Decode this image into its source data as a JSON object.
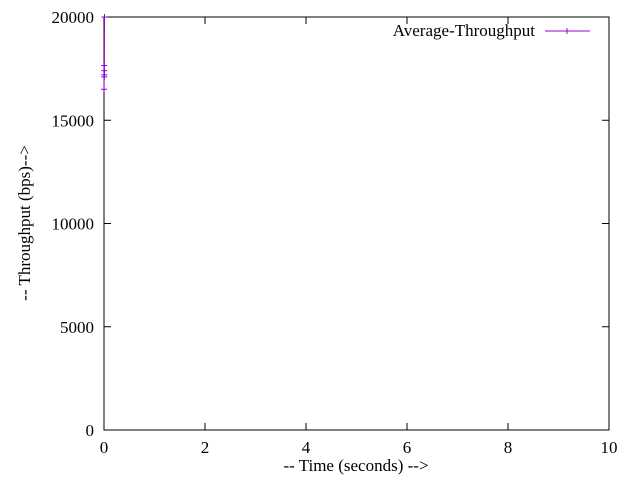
{
  "chart_data": {
    "type": "line",
    "title": "",
    "xlabel": "-- Time (seconds) -->",
    "ylabel": "-- Throughput (bps)-->",
    "xlim": [
      0,
      10
    ],
    "ylim": [
      0,
      20000
    ],
    "x_ticks": [
      0,
      2,
      4,
      6,
      8,
      10
    ],
    "y_ticks": [
      0,
      5000,
      10000,
      15000,
      20000
    ],
    "x_tick_labels": [
      "0",
      "2",
      "4",
      "6",
      "8",
      "10"
    ],
    "y_tick_labels": [
      "0",
      "5000",
      "10000",
      "15000",
      "20000"
    ],
    "grid": false,
    "legend_position": "top-right",
    "series": [
      {
        "name": "Average-Throughput",
        "color": "#9400d3",
        "marker": "plus",
        "points": [
          [
            0.001,
            16500
          ],
          [
            0.003,
            17650
          ],
          [
            0.005,
            17100
          ],
          [
            0.006,
            17400
          ],
          [
            0.007,
            17200
          ],
          [
            0.01,
            20000
          ]
        ]
      }
    ]
  }
}
